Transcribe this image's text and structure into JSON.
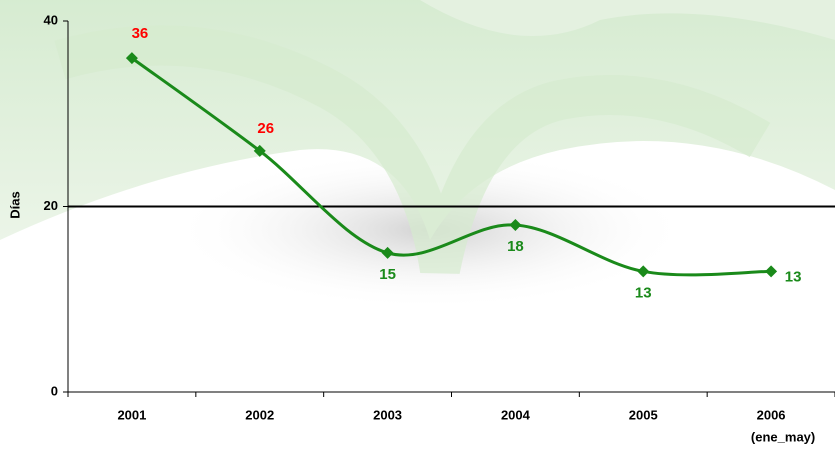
{
  "chart_data": {
    "type": "line",
    "y_label": "Días",
    "categories": [
      "2001",
      "2002",
      "2003",
      "2004",
      "2005",
      "2006"
    ],
    "x_note": "(ene_may)",
    "series": [
      {
        "color": "#1a8a1a",
        "values": [
          36,
          26,
          15,
          18,
          13,
          13
        ],
        "label_colors": [
          "#ff0000",
          "#ff0000",
          "#1a8a1a",
          "#1a8a1a",
          "#1a8a1a",
          "#1a8a1a"
        ]
      }
    ],
    "reference_line": 20,
    "ylim": [
      0,
      40
    ],
    "yticks": [
      0,
      20,
      40
    ]
  }
}
